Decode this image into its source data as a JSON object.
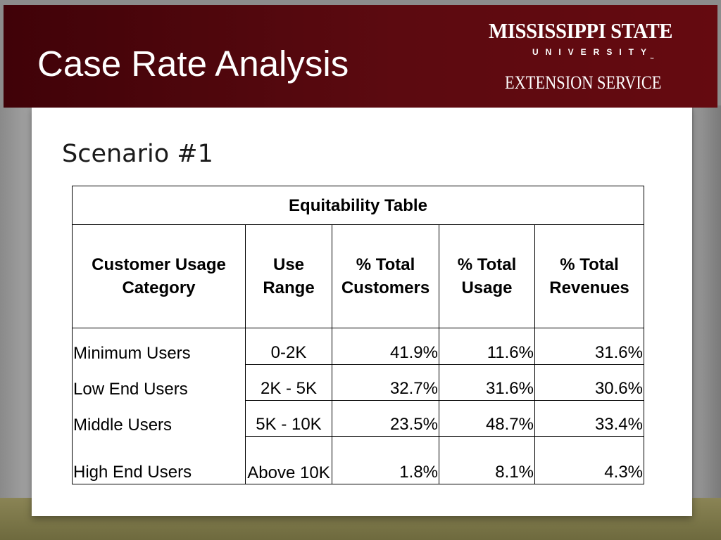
{
  "slide": {
    "title": "Case Rate Analysis",
    "subtitle": "Scenario #1",
    "colors": {
      "header_maroon": "#5c0a10",
      "bottom_band": "#7a754a",
      "background_gray": "#8c8c8c"
    }
  },
  "logo": {
    "line1": "MISSISSIPPI STATE",
    "line2": "UNIVERSITY",
    "tm": "™",
    "line3": "EXTENSION SERVICE"
  },
  "table": {
    "caption": "Equitability Table",
    "headers": [
      "Customer Usage Category",
      "Use Range",
      "% Total Customers",
      "% Total Usage",
      "% Total Revenues"
    ],
    "rows": [
      {
        "category": "Minimum Users",
        "range": "0-2K",
        "customers": "41.9%",
        "usage": "11.6%",
        "revenues": "31.6%"
      },
      {
        "category": "Low End Users",
        "range": "2K - 5K",
        "customers": "32.7%",
        "usage": "31.6%",
        "revenues": "30.6%"
      },
      {
        "category": "Middle Users",
        "range": "5K - 10K",
        "customers": "23.5%",
        "usage": "48.7%",
        "revenues": "33.4%"
      },
      {
        "category": "High End Users",
        "range": "Above 10K",
        "customers": "1.8%",
        "usage": "8.1%",
        "revenues": "4.3%"
      }
    ]
  }
}
